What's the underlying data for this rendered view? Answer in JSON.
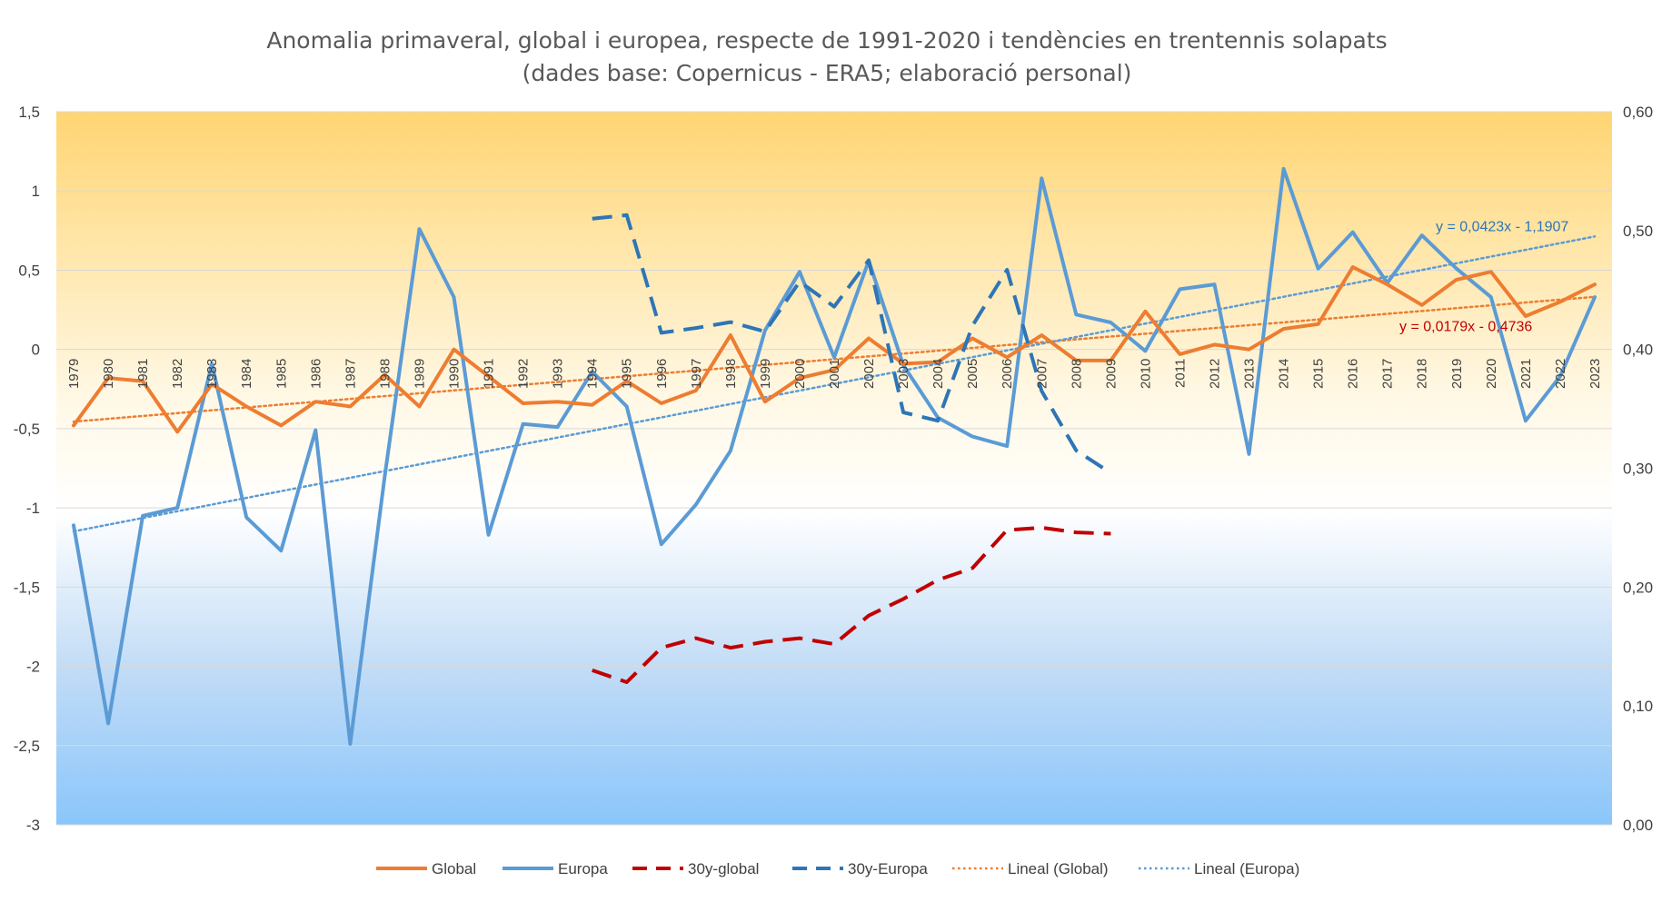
{
  "chart_data": {
    "type": "line",
    "title": "Anomalia primaveral, global i europea, respecte de 1991-2020 i tendències en trentennis solapats",
    "subtitle": "(dades base: Copernicus - ERA5; elaboració personal)",
    "categories": [
      "1979",
      "1980",
      "1981",
      "1982",
      "1983",
      "1984",
      "1985",
      "1986",
      "1987",
      "1988",
      "1989",
      "1990",
      "1991",
      "1992",
      "1993",
      "1994",
      "1995",
      "1996",
      "1997",
      "1998",
      "1999",
      "2000",
      "2001",
      "2002",
      "2003",
      "2004",
      "2005",
      "2006",
      "2007",
      "2008",
      "2009",
      "2010",
      "2011",
      "2012",
      "2013",
      "2014",
      "2015",
      "2016",
      "2017",
      "2018",
      "2019",
      "2020",
      "2021",
      "2022",
      "2023"
    ],
    "y_left": {
      "range": [
        -3,
        1.5
      ],
      "ticks": [
        -3,
        -2.5,
        -2,
        -1.5,
        -1,
        -0.5,
        0,
        0.5,
        1,
        1.5
      ],
      "tick_labels": [
        "-3",
        "-2,5",
        "-2",
        "-1,5",
        "-1",
        "-0,5",
        "0",
        "0,5",
        "1",
        "1,5"
      ]
    },
    "y_right": {
      "range": [
        0,
        0.6
      ],
      "ticks": [
        0,
        0.1,
        0.2,
        0.3,
        0.4,
        0.5,
        0.6
      ],
      "tick_labels": [
        "0,00",
        "0,10",
        "0,20",
        "0,30",
        "0,40",
        "0,50",
        "0,60"
      ]
    },
    "grid": true,
    "legend_position": "bottom",
    "series": [
      {
        "name": "Global",
        "axis": "left",
        "color": "#ED7D31",
        "style": "solid",
        "values": [
          -0.48,
          -0.18,
          -0.2,
          -0.52,
          -0.22,
          -0.36,
          -0.48,
          -0.33,
          -0.36,
          -0.16,
          -0.36,
          0.0,
          -0.17,
          -0.34,
          -0.33,
          -0.35,
          -0.2,
          -0.34,
          -0.26,
          0.09,
          -0.33,
          -0.18,
          -0.13,
          0.07,
          -0.09,
          -0.08,
          0.07,
          -0.05,
          0.09,
          -0.07,
          -0.07,
          0.24,
          -0.03,
          0.03,
          0.0,
          0.13,
          0.16,
          0.52,
          0.41,
          0.28,
          0.44,
          0.49,
          0.21,
          0.3,
          0.41
        ]
      },
      {
        "name": "Europa",
        "axis": "left",
        "color": "#5B9BD5",
        "style": "solid",
        "values": [
          -1.11,
          -2.36,
          -1.05,
          -1.0,
          -0.09,
          -1.06,
          -1.27,
          -0.51,
          -2.49,
          -0.8,
          0.76,
          0.33,
          -1.17,
          -0.47,
          -0.49,
          -0.14,
          -0.36,
          -1.23,
          -0.98,
          -0.64,
          0.12,
          0.49,
          -0.05,
          0.56,
          -0.1,
          -0.43,
          -0.55,
          -0.61,
          1.08,
          0.22,
          0.17,
          -0.01,
          0.38,
          0.41,
          -0.66,
          1.14,
          0.51,
          0.74,
          0.42,
          0.72,
          0.51,
          0.33,
          -0.45,
          -0.17,
          0.33
        ]
      },
      {
        "name": "30y-global",
        "axis": "right",
        "color": "#C00000",
        "style": "dashed",
        "x": [
          "1994",
          "1995",
          "1996",
          "1997",
          "1998",
          "1999",
          "2000",
          "2001",
          "2002",
          "2003",
          "2004",
          "2005",
          "2006",
          "2007",
          "2008",
          "2009"
        ],
        "values": [
          0.13,
          0.12,
          0.149,
          0.157,
          0.149,
          0.154,
          0.157,
          0.152,
          0.176,
          0.19,
          0.206,
          0.216,
          0.248,
          0.25,
          0.246,
          0.245
        ]
      },
      {
        "name": "30y-Europa",
        "axis": "right",
        "color": "#2E75B6",
        "style": "dashed",
        "x": [
          "1994",
          "1995",
          "1996",
          "1997",
          "1998",
          "1999",
          "2000",
          "2001",
          "2002",
          "2003",
          "2004",
          "2005",
          "2006",
          "2007",
          "2008",
          "2009"
        ],
        "values": [
          0.51,
          0.513,
          0.414,
          0.418,
          0.423,
          0.415,
          0.457,
          0.436,
          0.475,
          0.347,
          0.34,
          0.42,
          0.467,
          0.365,
          0.315,
          0.296
        ]
      }
    ],
    "trendlines": [
      {
        "name": "Lineal  (Global)",
        "of": "Global",
        "color": "#ED7D31",
        "style": "dotted",
        "slope": 0.0179,
        "intercept": -0.4736,
        "equation": "y = 0,0179x - 0,4736",
        "equation_color": "#C00000"
      },
      {
        "name": "Lineal  (Europa)",
        "of": "Europa",
        "color": "#5B9BD5",
        "style": "dotted",
        "slope": 0.0423,
        "intercept": -1.1907,
        "equation": "y = 0,0423x - 1,1907",
        "equation_color": "#2E75B6"
      }
    ],
    "legend": [
      "Global",
      "Europa",
      "30y-global",
      "30y-Europa",
      "Lineal  (Global)",
      "Lineal  (Europa)"
    ]
  }
}
